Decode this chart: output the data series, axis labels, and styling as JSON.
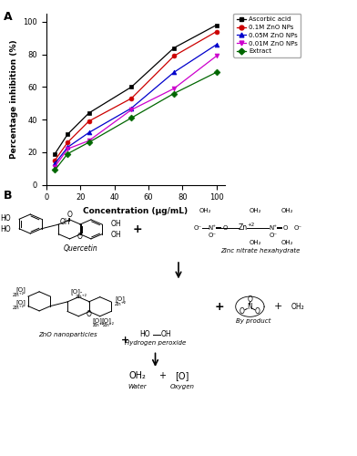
{
  "panel_A": {
    "xlabel": "Concentration (μg/mL)",
    "ylabel": "Percentage inhibition (%)",
    "xlim": [
      0,
      105
    ],
    "ylim": [
      0,
      105
    ],
    "xticks": [
      0,
      20,
      40,
      60,
      80,
      100
    ],
    "yticks": [
      0,
      20,
      40,
      60,
      80,
      100
    ],
    "series": [
      {
        "label": "Ascorbic acid",
        "color": "#000000",
        "marker": "s",
        "x": [
          5,
          12.5,
          25,
          50,
          75,
          100
        ],
        "y": [
          19,
          31,
          44,
          60,
          84,
          98
        ]
      },
      {
        "label": "0.1M ZnO NPs",
        "color": "#cc0000",
        "marker": "o",
        "x": [
          5,
          12.5,
          25,
          50,
          75,
          100
        ],
        "y": [
          15,
          26,
          39,
          53,
          79,
          94
        ]
      },
      {
        "label": "0.05M ZnO NPs",
        "color": "#0000cc",
        "marker": "^",
        "x": [
          5,
          12.5,
          25,
          50,
          75,
          100
        ],
        "y": [
          13,
          23,
          32,
          47,
          69,
          86
        ]
      },
      {
        "label": "0.01M ZnO NPs",
        "color": "#cc00cc",
        "marker": "v",
        "x": [
          5,
          12.5,
          25,
          50,
          75,
          100
        ],
        "y": [
          11,
          22,
          27,
          46,
          59,
          79
        ]
      },
      {
        "label": "Extract",
        "color": "#006600",
        "marker": "D",
        "x": [
          5,
          12.5,
          25,
          50,
          75,
          100
        ],
        "y": [
          9,
          19,
          26,
          41,
          56,
          69
        ]
      }
    ]
  }
}
